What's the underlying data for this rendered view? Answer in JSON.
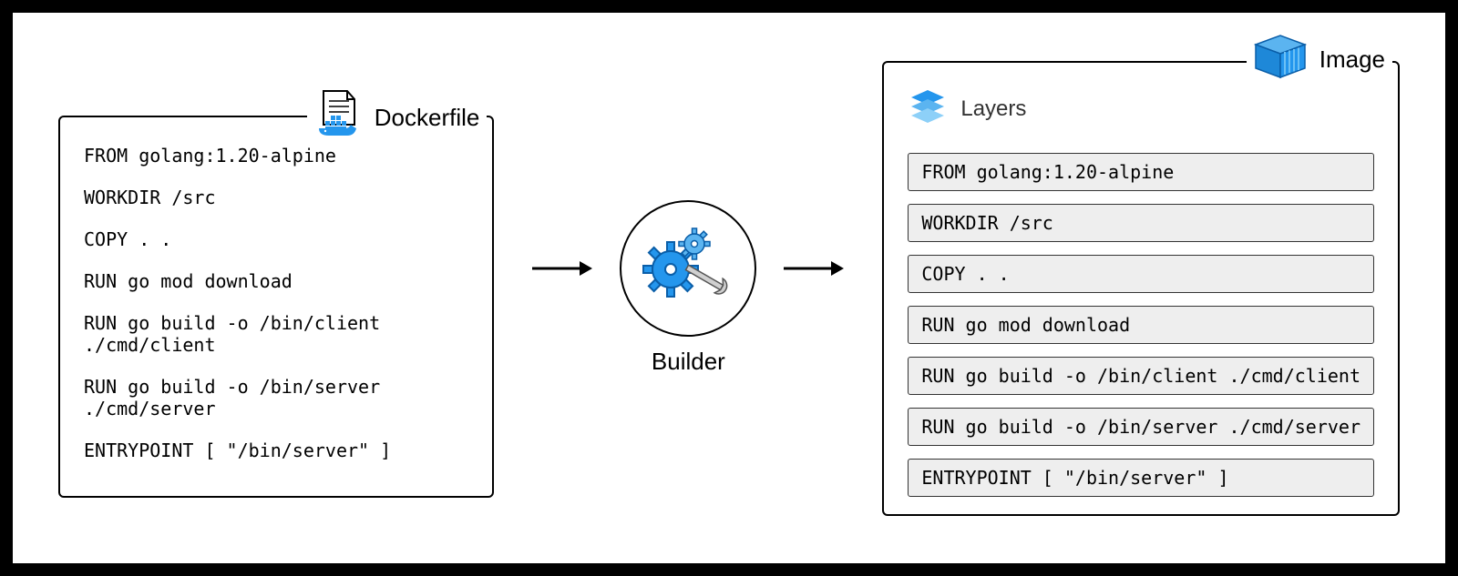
{
  "colors": {
    "accent": "#2496ed",
    "accent_light": "#5bb4f0",
    "layer_bg": "#eeeeee",
    "border": "#000000",
    "text": "#000000"
  },
  "dockerfile": {
    "title": "Dockerfile",
    "lines": [
      "FROM golang:1.20-alpine",
      "WORKDIR /src",
      "COPY . .",
      "RUN go mod download",
      "RUN go build -o /bin/client ./cmd/client",
      "RUN go build -o /bin/server ./cmd/server",
      "ENTRYPOINT [ \"/bin/server\" ]"
    ]
  },
  "builder": {
    "label": "Builder"
  },
  "image": {
    "title": "Image",
    "layers_label": "Layers",
    "layers": [
      "FROM golang:1.20-alpine",
      "WORKDIR /src",
      "COPY . .",
      "RUN go mod download",
      "RUN go build -o /bin/client ./cmd/client",
      "RUN go build -o /bin/server ./cmd/server",
      "ENTRYPOINT [ \"/bin/server\" ]"
    ]
  }
}
